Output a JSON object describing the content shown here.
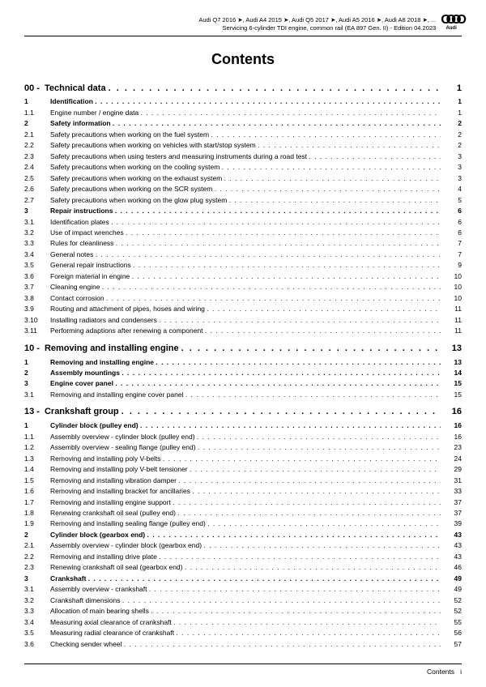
{
  "header": {
    "line1": "Audi Q7 2016 ➤, Audi A4 2015 ➤, Audi Q5 2017 ➤, Audi A5 2016 ➤, Audi A8 2018 ➤, ...",
    "line2": "Servicing 6-cylinder TDI engine, common rail (EA 897 Gen. II) - Edition 04.2023",
    "logo_label": "Audi"
  },
  "title": "Contents",
  "sections": [
    {
      "num": "00 -",
      "label": "Technical data",
      "page": "1",
      "entries": [
        {
          "num": "1",
          "label": "Identification",
          "page": "1",
          "bold": true
        },
        {
          "num": "1.1",
          "label": "Engine number / engine data",
          "page": "1"
        },
        {
          "num": "2",
          "label": "Safety information",
          "page": "2",
          "bold": true
        },
        {
          "num": "2.1",
          "label": "Safety precautions when working on the fuel system",
          "page": "2"
        },
        {
          "num": "2.2",
          "label": "Safety precautions when working on vehicles with start/stop system",
          "page": "2"
        },
        {
          "num": "2.3",
          "label": "Safety precautions when using testers and measuring instruments during a road test",
          "page": "3"
        },
        {
          "num": "2.4",
          "label": "Safety precautions when working on the cooling system",
          "page": "3"
        },
        {
          "num": "2.5",
          "label": "Safety precautions when working on the exhaust system",
          "page": "3"
        },
        {
          "num": "2.6",
          "label": "Safety precautions when working on the SCR system",
          "page": "4"
        },
        {
          "num": "2.7",
          "label": "Safety precautions when working on the glow plug system",
          "page": "5"
        },
        {
          "num": "3",
          "label": "Repair instructions",
          "page": "6",
          "bold": true
        },
        {
          "num": "3.1",
          "label": "Identification plates",
          "page": "6"
        },
        {
          "num": "3.2",
          "label": "Use of impact wrenches",
          "page": "6"
        },
        {
          "num": "3.3",
          "label": "Rules for cleanliness",
          "page": "7"
        },
        {
          "num": "3.4",
          "label": "General notes",
          "page": "7"
        },
        {
          "num": "3.5",
          "label": "General repair instructions",
          "page": "9"
        },
        {
          "num": "3.6",
          "label": "Foreign material in engine",
          "page": "10"
        },
        {
          "num": "3.7",
          "label": "Cleaning engine",
          "page": "10"
        },
        {
          "num": "3.8",
          "label": "Contact corrosion",
          "page": "10"
        },
        {
          "num": "3.9",
          "label": "Routing and attachment of pipes, hoses and wiring",
          "page": "11"
        },
        {
          "num": "3.10",
          "label": "Installing radiators and condensers",
          "page": "11"
        },
        {
          "num": "3.11",
          "label": "Performing adaptions after renewing a component",
          "page": "11"
        }
      ]
    },
    {
      "num": "10 -",
      "label": "Removing and installing engine",
      "page": "13",
      "entries": [
        {
          "num": "1",
          "label": "Removing and installing engine",
          "page": "13",
          "bold": true
        },
        {
          "num": "2",
          "label": "Assembly mountings",
          "page": "14",
          "bold": true
        },
        {
          "num": "3",
          "label": "Engine cover panel",
          "page": "15",
          "bold": true
        },
        {
          "num": "3.1",
          "label": "Removing and installing engine cover panel",
          "page": "15"
        }
      ]
    },
    {
      "num": "13 -",
      "label": "Crankshaft group",
      "page": "16",
      "entries": [
        {
          "num": "1",
          "label": "Cylinder block (pulley end)",
          "page": "16",
          "bold": true
        },
        {
          "num": "1.1",
          "label": "Assembly overview - cylinder block (pulley end)",
          "page": "16"
        },
        {
          "num": "1.2",
          "label": "Assembly overview - sealing flange (pulley end)",
          "page": "23"
        },
        {
          "num": "1.3",
          "label": "Removing and installing poly V-belts",
          "page": "24"
        },
        {
          "num": "1.4",
          "label": "Removing and installing poly V-belt tensioner",
          "page": "29"
        },
        {
          "num": "1.5",
          "label": "Removing and installing vibration damper",
          "page": "31"
        },
        {
          "num": "1.6",
          "label": "Removing and installing bracket for ancillaries",
          "page": "33"
        },
        {
          "num": "1.7",
          "label": "Removing and installing engine support",
          "page": "37"
        },
        {
          "num": "1.8",
          "label": "Renewing crankshaft oil seal (pulley end)",
          "page": "37"
        },
        {
          "num": "1.9",
          "label": "Removing and installing sealing flange (pulley end)",
          "page": "39"
        },
        {
          "num": "2",
          "label": "Cylinder block (gearbox end)",
          "page": "43",
          "bold": true
        },
        {
          "num": "2.1",
          "label": "Assembly overview - cylinder block (gearbox end)",
          "page": "43"
        },
        {
          "num": "2.2",
          "label": "Removing and installing drive plate",
          "page": "43"
        },
        {
          "num": "2.3",
          "label": "Renewing crankshaft oil seal (gearbox end)",
          "page": "46"
        },
        {
          "num": "3",
          "label": "Crankshaft",
          "page": "49",
          "bold": true
        },
        {
          "num": "3.1",
          "label": "Assembly overview - crankshaft",
          "page": "49"
        },
        {
          "num": "3.2",
          "label": "Crankshaft dimensions",
          "page": "52"
        },
        {
          "num": "3.3",
          "label": "Allocation of main bearing shells",
          "page": "52"
        },
        {
          "num": "3.4",
          "label": "Measuring axial clearance of crankshaft",
          "page": "55"
        },
        {
          "num": "3.5",
          "label": "Measuring radial clearance of crankshaft",
          "page": "56"
        },
        {
          "num": "3.6",
          "label": "Checking sender wheel",
          "page": "57"
        }
      ]
    }
  ],
  "footer": {
    "label": "Contents",
    "page": "i"
  }
}
